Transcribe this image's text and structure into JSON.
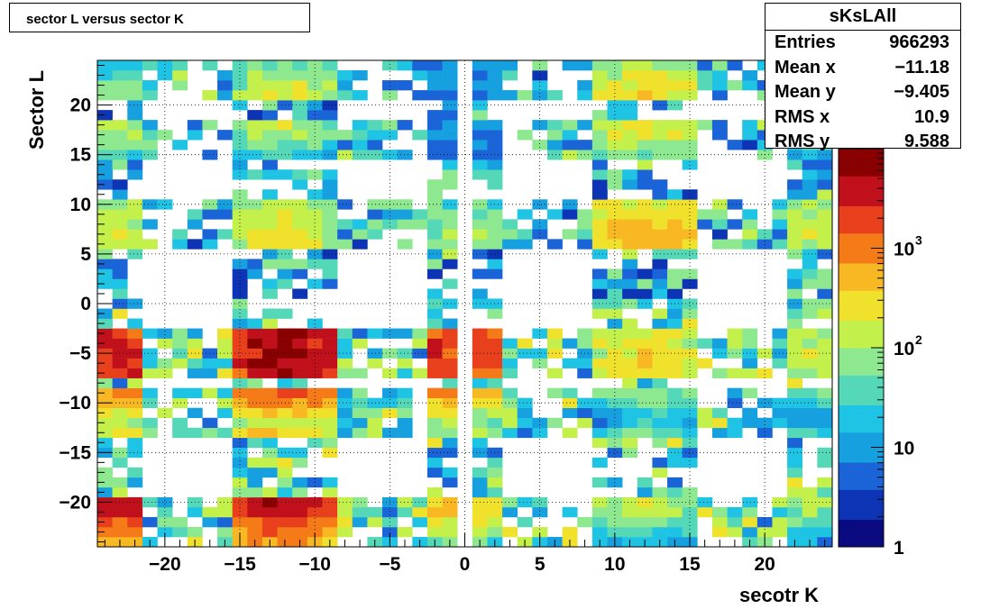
{
  "title": "sector L versus sector K",
  "stats": {
    "name": "sKsLAll",
    "rows": [
      {
        "key": "Entries",
        "value": "966293"
      },
      {
        "key": "Mean x",
        "value": "−11.18"
      },
      {
        "key": "Mean y",
        "value": "−9.405"
      },
      {
        "key": "RMS x",
        "value": "10.9"
      },
      {
        "key": "RMS y",
        "value": "9.588"
      }
    ]
  },
  "chart_data": {
    "type": "heatmap",
    "title": "sector L versus sector K",
    "xlabel": "secotr K",
    "ylabel": "Sector L",
    "xlim": [
      -24.5,
      24.5
    ],
    "ylim": [
      -24.5,
      24.5
    ],
    "xticks": [
      -20,
      -15,
      -10,
      -5,
      0,
      5,
      10,
      15,
      20
    ],
    "xtick_labels": [
      "−20",
      "−15",
      "−10",
      "−5",
      "0",
      "5",
      "10",
      "15",
      "20"
    ],
    "yticks": [
      -20,
      -15,
      -10,
      -5,
      0,
      5,
      10,
      15,
      20
    ],
    "ytick_labels": [
      "−20",
      "−15",
      "−10",
      "−5",
      "0",
      "5",
      "10",
      "15",
      "20"
    ],
    "grid": true,
    "colorscale": "log",
    "zlim": [
      1,
      10000
    ],
    "colorbar_ticks": [
      1,
      10,
      100,
      1000
    ],
    "colorbar_labels": [
      {
        "base": "1",
        "exp": ""
      },
      {
        "base": "10",
        "exp": ""
      },
      {
        "base": "10",
        "exp": "2"
      },
      {
        "base": "10",
        "exp": "3"
      }
    ],
    "palette": [
      "#0b0b80",
      "#0d34b4",
      "#1a64d8",
      "#16a0e0",
      "#1fc4e4",
      "#55d8b8",
      "#8ee890",
      "#c4f04c",
      "#f0e12c",
      "#f8b824",
      "#f47b18",
      "#e8401c",
      "#c0101c",
      "#880000"
    ],
    "occupied_ranges": {
      "columns": [
        [
          -24,
          -22
        ],
        [
          -15,
          -9
        ],
        [
          -2,
          -1
        ],
        [
          1,
          2
        ],
        [
          9,
          15
        ],
        [
          22,
          24
        ]
      ],
      "rows": [
        [
          -24,
          -20
        ],
        [
          -13,
          -9
        ],
        [
          -7,
          -3
        ],
        [
          6,
          10
        ],
        [
          15,
          18
        ],
        [
          21,
          24
        ]
      ]
    },
    "hotspots": [
      {
        "x": -12,
        "y": -5,
        "z": 6000
      },
      {
        "x": -12,
        "y": -19,
        "z": 5000
      },
      {
        "x": -23,
        "y": -5,
        "z": 3000
      },
      {
        "x": -23,
        "y": -19,
        "z": 3500
      },
      {
        "x": -1,
        "y": -5,
        "z": 2500
      },
      {
        "x": -1,
        "y": -18,
        "z": 800
      },
      {
        "x": 12,
        "y": -5,
        "z": 300
      },
      {
        "x": 12,
        "y": -18,
        "z": 250
      },
      {
        "x": 23,
        "y": -5,
        "z": 150
      },
      {
        "x": 23,
        "y": -18,
        "z": 150
      },
      {
        "x": -12,
        "y": 20,
        "z": 200
      },
      {
        "x": -12,
        "y": 7,
        "z": 250
      },
      {
        "x": -23,
        "y": 19,
        "z": 120
      },
      {
        "x": -23,
        "y": 7,
        "z": 150
      },
      {
        "x": 12,
        "y": 20,
        "z": 400
      },
      {
        "x": 12,
        "y": 7,
        "z": 500
      },
      {
        "x": 23,
        "y": 7,
        "z": 150
      },
      {
        "x": 23,
        "y": 20,
        "z": 100
      },
      {
        "x": -1,
        "y": 7,
        "z": 80
      },
      {
        "x": 1,
        "y": 7,
        "z": 80
      }
    ]
  }
}
